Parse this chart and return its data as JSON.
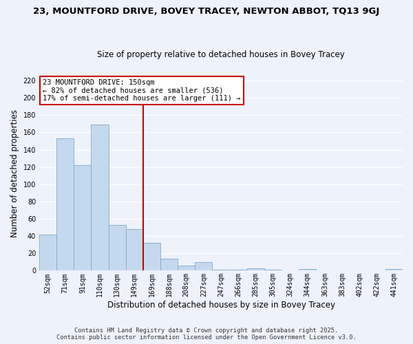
{
  "title": "23, MOUNTFORD DRIVE, BOVEY TRACEY, NEWTON ABBOT, TQ13 9GJ",
  "subtitle": "Size of property relative to detached houses in Bovey Tracey",
  "xlabel": "Distribution of detached houses by size in Bovey Tracey",
  "ylabel": "Number of detached properties",
  "categories": [
    "52sqm",
    "71sqm",
    "91sqm",
    "110sqm",
    "130sqm",
    "149sqm",
    "169sqm",
    "188sqm",
    "208sqm",
    "227sqm",
    "247sqm",
    "266sqm",
    "285sqm",
    "305sqm",
    "324sqm",
    "344sqm",
    "363sqm",
    "383sqm",
    "402sqm",
    "422sqm",
    "441sqm"
  ],
  "values": [
    42,
    153,
    122,
    169,
    53,
    48,
    32,
    14,
    6,
    10,
    1,
    1,
    3,
    1,
    0,
    2,
    0,
    0,
    0,
    0,
    2
  ],
  "bar_color": "#c5d9ee",
  "bar_edge_color": "#7aabcc",
  "ref_line_index": 5,
  "ref_line_color": "#cc0000",
  "annotation_title": "23 MOUNTFORD DRIVE: 150sqm",
  "annotation_line1": "← 82% of detached houses are smaller (536)",
  "annotation_line2": "17% of semi-detached houses are larger (111) →",
  "annotation_box_color": "#ffffff",
  "annotation_box_edge_color": "#cc0000",
  "footer_line1": "Contains HM Land Registry data © Crown copyright and database right 2025.",
  "footer_line2": "Contains public sector information licensed under the Open Government Licence v3.0.",
  "ylim": [
    0,
    225
  ],
  "yticks": [
    0,
    20,
    40,
    60,
    80,
    100,
    120,
    140,
    160,
    180,
    200,
    220
  ],
  "background_color": "#eef2fb",
  "grid_color": "#ffffff",
  "title_fontsize": 9.5,
  "subtitle_fontsize": 8.5,
  "axis_label_fontsize": 8.5,
  "tick_fontsize": 7,
  "annotation_fontsize": 7.5,
  "footer_fontsize": 6.2
}
